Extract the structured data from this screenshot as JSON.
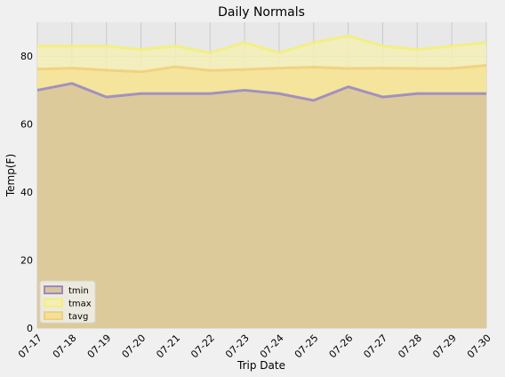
{
  "chart_data": {
    "type": "area",
    "title": "Daily Normals",
    "xlabel": "Trip Date",
    "ylabel": "Temp(F)",
    "categories": [
      "07-17",
      "07-18",
      "07-19",
      "07-20",
      "07-21",
      "07-22",
      "07-23",
      "07-24",
      "07-25",
      "07-26",
      "07-27",
      "07-28",
      "07-29",
      "07-30"
    ],
    "ylim": [
      0,
      90
    ],
    "yticks": [
      0,
      20,
      40,
      60,
      80
    ],
    "grid": true,
    "stacked": false,
    "legend_position": "lower-left",
    "series": [
      {
        "name": "tmin",
        "color": "#9b88c4",
        "fill": "#d7c69a",
        "values": [
          70,
          72,
          68,
          69,
          69,
          69,
          70,
          69,
          67,
          71,
          68,
          69,
          69,
          69
        ]
      },
      {
        "name": "tmax",
        "color": "#f3f07a",
        "fill": "#f4efb6",
        "values": [
          83,
          83,
          83,
          82,
          83,
          81,
          84,
          81,
          84,
          86,
          83,
          82,
          83,
          84
        ]
      },
      {
        "name": "tavg",
        "color": "#f1cf7c",
        "fill": "#f3e296",
        "values": [
          76.2,
          76.5,
          75.9,
          75.4,
          76.9,
          75.8,
          76.1,
          76.5,
          76.8,
          76.4,
          76.5,
          76.4,
          76.4,
          77.3
        ]
      }
    ],
    "background": "#e8e8e8"
  }
}
